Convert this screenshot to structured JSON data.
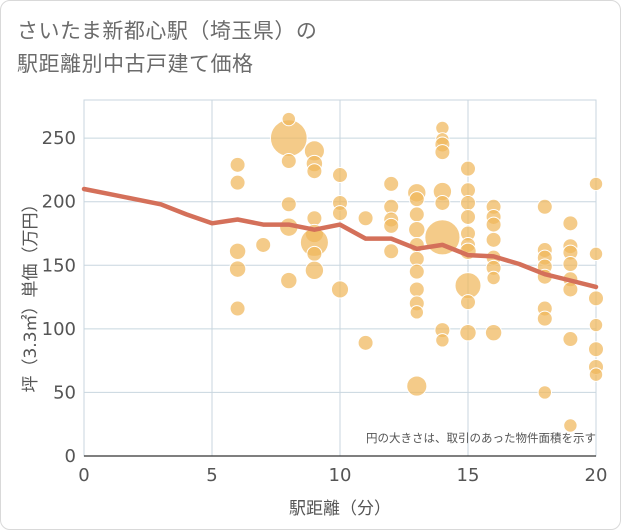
{
  "title_line1": "さいたま新都心駅（埼玉県）の",
  "title_line2": "駅距離別中古戸建て価格",
  "note": "円の大きさは、取引のあった物件面積を示す",
  "colors": {
    "bubble": "#f0b75c",
    "line": "#d4705a",
    "grid": "#c8d6df",
    "text": "#555555"
  },
  "chart_data": {
    "type": "scatter",
    "xlabel": "駅距離（分）",
    "ylabel": "坪（3.3㎡）単価（万円）",
    "xlim": [
      0,
      20
    ],
    "ylim": [
      0,
      280
    ],
    "xticks": [
      "0",
      "5",
      "10",
      "15",
      "20"
    ],
    "yticks": [
      "0",
      "50",
      "100",
      "150",
      "200",
      "250"
    ],
    "line": {
      "x": [
        0,
        1,
        2,
        3,
        4,
        5,
        6,
        7,
        8,
        9,
        10,
        11,
        12,
        13,
        14,
        15,
        16,
        17,
        18,
        19,
        20
      ],
      "y": [
        210,
        206,
        202,
        198,
        190,
        183,
        186,
        182,
        182,
        178,
        182,
        171,
        171,
        163,
        166,
        158,
        157,
        151,
        143,
        138,
        133
      ]
    },
    "bubbles": [
      {
        "x": 6,
        "y": 229,
        "s": 1
      },
      {
        "x": 6,
        "y": 215,
        "s": 1
      },
      {
        "x": 6,
        "y": 161,
        "s": 1.2
      },
      {
        "x": 6,
        "y": 147,
        "s": 1.2
      },
      {
        "x": 6,
        "y": 116,
        "s": 1
      },
      {
        "x": 7,
        "y": 166,
        "s": 1
      },
      {
        "x": 8,
        "y": 250,
        "s": 6
      },
      {
        "x": 8,
        "y": 265,
        "s": 0.8
      },
      {
        "x": 8,
        "y": 232,
        "s": 1
      },
      {
        "x": 8,
        "y": 198,
        "s": 1
      },
      {
        "x": 8,
        "y": 180,
        "s": 1.5
      },
      {
        "x": 8,
        "y": 138,
        "s": 1.2
      },
      {
        "x": 9,
        "y": 240,
        "s": 1.8
      },
      {
        "x": 9,
        "y": 230,
        "s": 1.2
      },
      {
        "x": 9,
        "y": 224,
        "s": 1
      },
      {
        "x": 9,
        "y": 187,
        "s": 1
      },
      {
        "x": 9,
        "y": 175,
        "s": 1.5
      },
      {
        "x": 9,
        "y": 168,
        "s": 3.5
      },
      {
        "x": 9,
        "y": 159,
        "s": 1
      },
      {
        "x": 9,
        "y": 146,
        "s": 1.5
      },
      {
        "x": 10,
        "y": 221,
        "s": 1
      },
      {
        "x": 10,
        "y": 199,
        "s": 1
      },
      {
        "x": 10,
        "y": 191,
        "s": 1
      },
      {
        "x": 10,
        "y": 131,
        "s": 1.3
      },
      {
        "x": 11,
        "y": 187,
        "s": 1
      },
      {
        "x": 11,
        "y": 89,
        "s": 1
      },
      {
        "x": 12,
        "y": 214,
        "s": 1
      },
      {
        "x": 12,
        "y": 196,
        "s": 1
      },
      {
        "x": 12,
        "y": 186,
        "s": 1
      },
      {
        "x": 12,
        "y": 181,
        "s": 1
      },
      {
        "x": 12,
        "y": 161,
        "s": 1
      },
      {
        "x": 13,
        "y": 207,
        "s": 1.5
      },
      {
        "x": 13,
        "y": 202,
        "s": 1
      },
      {
        "x": 13,
        "y": 190,
        "s": 1
      },
      {
        "x": 13,
        "y": 178,
        "s": 1.2
      },
      {
        "x": 13,
        "y": 166,
        "s": 1
      },
      {
        "x": 13,
        "y": 155,
        "s": 1
      },
      {
        "x": 13,
        "y": 145,
        "s": 1
      },
      {
        "x": 13,
        "y": 131,
        "s": 1
      },
      {
        "x": 13,
        "y": 120,
        "s": 1
      },
      {
        "x": 13,
        "y": 113,
        "s": 0.8
      },
      {
        "x": 13,
        "y": 55,
        "s": 1.8
      },
      {
        "x": 14,
        "y": 258,
        "s": 0.8
      },
      {
        "x": 14,
        "y": 249,
        "s": 0.8
      },
      {
        "x": 14,
        "y": 245,
        "s": 1
      },
      {
        "x": 14,
        "y": 239,
        "s": 1
      },
      {
        "x": 14,
        "y": 208,
        "s": 1.5
      },
      {
        "x": 14,
        "y": 199,
        "s": 1
      },
      {
        "x": 14,
        "y": 172,
        "s": 5.5
      },
      {
        "x": 14,
        "y": 99,
        "s": 1
      },
      {
        "x": 14,
        "y": 91,
        "s": 0.8
      },
      {
        "x": 15,
        "y": 226,
        "s": 1
      },
      {
        "x": 15,
        "y": 209,
        "s": 1
      },
      {
        "x": 15,
        "y": 199,
        "s": 1
      },
      {
        "x": 15,
        "y": 188,
        "s": 1
      },
      {
        "x": 15,
        "y": 175,
        "s": 1
      },
      {
        "x": 15,
        "y": 166,
        "s": 1
      },
      {
        "x": 15,
        "y": 161,
        "s": 1.2
      },
      {
        "x": 15,
        "y": 134,
        "s": 3
      },
      {
        "x": 15,
        "y": 121,
        "s": 1
      },
      {
        "x": 15,
        "y": 97,
        "s": 1.2
      },
      {
        "x": 16,
        "y": 196,
        "s": 1
      },
      {
        "x": 16,
        "y": 188,
        "s": 1
      },
      {
        "x": 16,
        "y": 182,
        "s": 1
      },
      {
        "x": 16,
        "y": 170,
        "s": 1
      },
      {
        "x": 16,
        "y": 156,
        "s": 1
      },
      {
        "x": 16,
        "y": 148,
        "s": 1
      },
      {
        "x": 16,
        "y": 140,
        "s": 0.8
      },
      {
        "x": 16,
        "y": 97,
        "s": 1.2
      },
      {
        "x": 18,
        "y": 196,
        "s": 1
      },
      {
        "x": 18,
        "y": 162,
        "s": 1
      },
      {
        "x": 18,
        "y": 156,
        "s": 1
      },
      {
        "x": 18,
        "y": 149,
        "s": 1
      },
      {
        "x": 18,
        "y": 141,
        "s": 1
      },
      {
        "x": 18,
        "y": 116,
        "s": 1
      },
      {
        "x": 18,
        "y": 108,
        "s": 1
      },
      {
        "x": 18,
        "y": 50,
        "s": 0.8
      },
      {
        "x": 19,
        "y": 183,
        "s": 1
      },
      {
        "x": 19,
        "y": 165,
        "s": 1
      },
      {
        "x": 19,
        "y": 160,
        "s": 1
      },
      {
        "x": 19,
        "y": 151,
        "s": 1
      },
      {
        "x": 19,
        "y": 139,
        "s": 1
      },
      {
        "x": 19,
        "y": 131,
        "s": 1
      },
      {
        "x": 19,
        "y": 92,
        "s": 1
      },
      {
        "x": 19,
        "y": 24,
        "s": 0.8
      },
      {
        "x": 20,
        "y": 214,
        "s": 0.8
      },
      {
        "x": 20,
        "y": 159,
        "s": 0.8
      },
      {
        "x": 20,
        "y": 124,
        "s": 1
      },
      {
        "x": 20,
        "y": 103,
        "s": 0.8
      },
      {
        "x": 20,
        "y": 84,
        "s": 1
      },
      {
        "x": 20,
        "y": 70,
        "s": 1
      },
      {
        "x": 20,
        "y": 64,
        "s": 0.8
      }
    ]
  }
}
